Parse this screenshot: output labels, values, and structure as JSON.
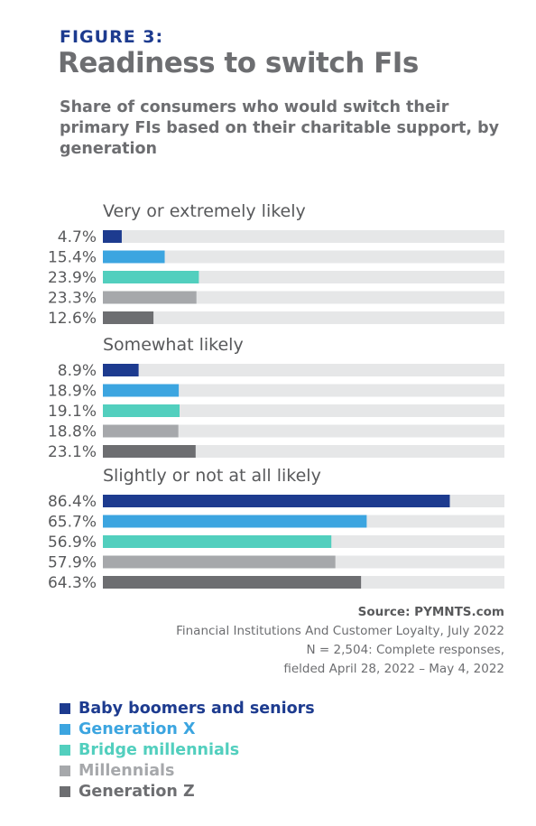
{
  "figure_label": "FIGURE 3:",
  "title": "Readiness to switch FIs",
  "subtitle": "Share of consumers who would switch their primary FIs based on their charitable support, by generation",
  "chart_data": {
    "type": "bar",
    "orientation": "horizontal",
    "xlim": [
      0,
      100
    ],
    "groups": [
      {
        "name": "Very or extremely likely",
        "labels": [
          "4.7%",
          "15.4%",
          "23.9%",
          "23.3%",
          "12.6%"
        ],
        "values": [
          4.7,
          15.4,
          23.9,
          23.3,
          12.6
        ]
      },
      {
        "name": "Somewhat likely",
        "labels": [
          "8.9%",
          "18.9%",
          "19.1%",
          "18.8%",
          "23.1%"
        ],
        "values": [
          8.9,
          18.9,
          19.1,
          18.8,
          23.1
        ]
      },
      {
        "name": "Slightly or not at all likely",
        "labels": [
          "86.4%",
          "65.7%",
          "56.9%",
          "57.9%",
          "64.3%"
        ],
        "values": [
          86.4,
          65.7,
          56.9,
          57.9,
          64.3
        ]
      }
    ],
    "series": [
      {
        "name": "Baby boomers and seniors",
        "color": "#1d3b8f"
      },
      {
        "name": "Generation X",
        "color": "#3ca5e0"
      },
      {
        "name": "Bridge millennials",
        "color": "#52cfbe"
      },
      {
        "name": "Millennials",
        "color": "#a6a8ab"
      },
      {
        "name": "Generation Z",
        "color": "#6d6e71"
      }
    ],
    "track_color": "#e6e7e8"
  },
  "source": {
    "title": "Source: PYMNTS.com",
    "line1": "Financial Institutions And Customer Loyalty, July 2022",
    "line2": "N = 2,504: Complete responses,",
    "line3": "fielded April 28, 2022 – May 4, 2022"
  }
}
